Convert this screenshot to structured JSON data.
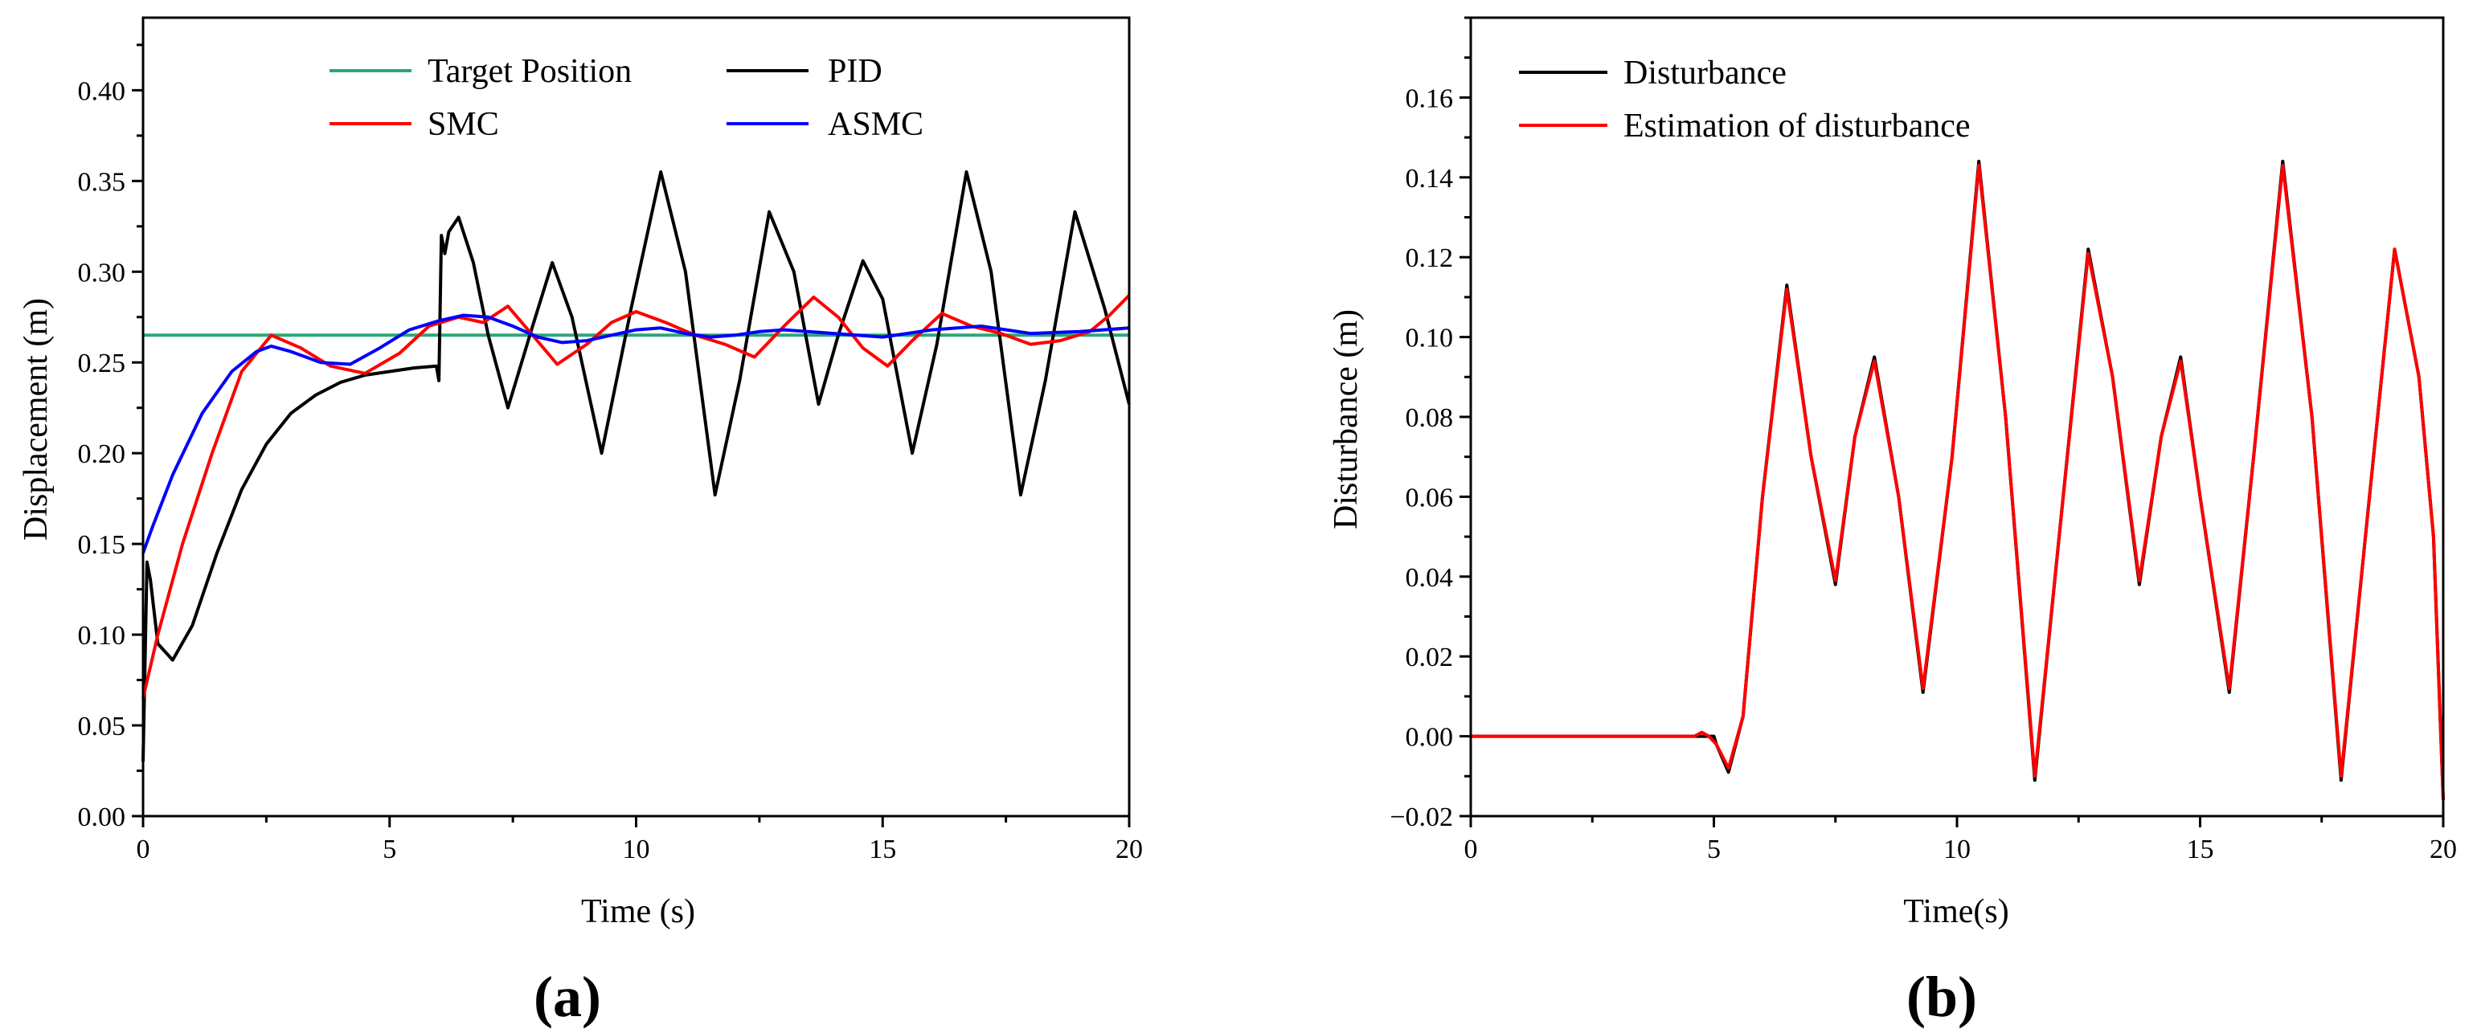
{
  "chart_data": [
    {
      "type": "line",
      "panel_label": "(a)",
      "xlabel": "Time (s)",
      "ylabel": "Displacement (m)",
      "xlim": [
        0,
        20
      ],
      "ylim": [
        0,
        0.44
      ],
      "xticks": [
        0,
        5,
        10,
        15,
        20
      ],
      "xtick_labels": [
        "0",
        "5",
        "10",
        "15",
        "20"
      ],
      "yticks": [
        0,
        0.05,
        0.1,
        0.15,
        0.2,
        0.25,
        0.3,
        0.35,
        0.4
      ],
      "ytick_labels": [
        "0.00",
        "0.05",
        "0.10",
        "0.15",
        "0.20",
        "0.25",
        "0.30",
        "0.35",
        "0.40"
      ],
      "legend_position": "top",
      "series": [
        {
          "name": "Target Position",
          "color": "#2aa876",
          "x": [
            0,
            20
          ],
          "y": [
            0.265,
            0.265
          ]
        },
        {
          "name": "PID",
          "color": "#000000",
          "x": [
            0,
            0.08,
            0.15,
            0.3,
            0.6,
            1.0,
            1.5,
            2.0,
            2.5,
            3.0,
            3.5,
            4.0,
            4.5,
            5.0,
            5.5,
            5.95,
            6.0,
            6.05,
            6.12,
            6.2,
            6.4,
            6.7,
            7.0,
            7.4,
            7.9,
            8.3,
            8.7,
            9.3,
            9.9,
            10.5,
            11.0,
            11.6,
            12.1,
            12.7,
            13.2,
            13.7,
            14.1,
            14.6,
            15.0,
            15.6,
            16.1,
            16.7,
            17.2,
            17.8,
            18.3,
            18.9,
            19.5,
            20.0
          ],
          "y": [
            0.03,
            0.14,
            0.13,
            0.095,
            0.086,
            0.105,
            0.145,
            0.18,
            0.205,
            0.222,
            0.232,
            0.239,
            0.243,
            0.245,
            0.247,
            0.248,
            0.24,
            0.32,
            0.31,
            0.322,
            0.33,
            0.305,
            0.265,
            0.225,
            0.27,
            0.305,
            0.275,
            0.2,
            0.28,
            0.355,
            0.3,
            0.177,
            0.24,
            0.333,
            0.3,
            0.227,
            0.265,
            0.306,
            0.285,
            0.2,
            0.26,
            0.355,
            0.3,
            0.177,
            0.24,
            0.333,
            0.28,
            0.227
          ]
        },
        {
          "name": "SMC",
          "color": "#ff0000",
          "x": [
            0,
            0.3,
            0.8,
            1.4,
            2.0,
            2.6,
            3.2,
            3.8,
            4.5,
            5.2,
            5.8,
            6.4,
            6.9,
            7.4,
            7.9,
            8.4,
            9.0,
            9.5,
            10.0,
            10.6,
            11.2,
            11.8,
            12.4,
            13.0,
            13.6,
            14.1,
            14.6,
            15.1,
            15.6,
            16.2,
            16.8,
            17.4,
            18.0,
            18.6,
            19.2,
            19.6,
            20.0
          ],
          "y": [
            0.065,
            0.1,
            0.15,
            0.2,
            0.245,
            0.265,
            0.258,
            0.248,
            0.244,
            0.255,
            0.27,
            0.275,
            0.272,
            0.281,
            0.265,
            0.249,
            0.26,
            0.272,
            0.278,
            0.272,
            0.265,
            0.26,
            0.253,
            0.27,
            0.286,
            0.275,
            0.258,
            0.248,
            0.262,
            0.277,
            0.27,
            0.266,
            0.26,
            0.262,
            0.267,
            0.276,
            0.287
          ]
        },
        {
          "name": "ASMC",
          "color": "#0000ff",
          "x": [
            0,
            0.2,
            0.6,
            1.2,
            1.8,
            2.3,
            2.6,
            3.0,
            3.6,
            4.2,
            4.8,
            5.4,
            6.0,
            6.5,
            7.0,
            7.5,
            8.0,
            8.5,
            9.0,
            9.5,
            10.0,
            10.5,
            11.0,
            11.5,
            12.0,
            12.5,
            13.0,
            14.0,
            15.0,
            16.0,
            17.0,
            18.0,
            19.0,
            20.0
          ],
          "y": [
            0.145,
            0.16,
            0.188,
            0.222,
            0.245,
            0.256,
            0.259,
            0.256,
            0.25,
            0.249,
            0.258,
            0.268,
            0.273,
            0.276,
            0.275,
            0.27,
            0.264,
            0.261,
            0.262,
            0.265,
            0.268,
            0.269,
            0.266,
            0.264,
            0.265,
            0.267,
            0.268,
            0.266,
            0.264,
            0.268,
            0.27,
            0.266,
            0.267,
            0.269
          ]
        }
      ]
    },
    {
      "type": "line",
      "panel_label": "(b)",
      "xlabel": "Time(s)",
      "ylabel": "Disturbance (m)",
      "xlim": [
        0,
        20
      ],
      "ylim": [
        -0.02,
        0.18
      ],
      "xticks": [
        0,
        5,
        10,
        15,
        20
      ],
      "xtick_labels": [
        "0",
        "5",
        "10",
        "15",
        "20"
      ],
      "yticks": [
        -0.02,
        0,
        0.02,
        0.04,
        0.06,
        0.08,
        0.1,
        0.12,
        0.14,
        0.16
      ],
      "ytick_labels": [
        "−0.02",
        "0.00",
        "0.02",
        "0.04",
        "0.06",
        "0.08",
        "0.10",
        "0.12",
        "0.14",
        "0.16"
      ],
      "legend_position": "top-left",
      "series": [
        {
          "name": "Disturbance",
          "color": "#000000",
          "x": [
            0,
            4.9,
            5.0,
            5.05,
            5.3,
            5.6,
            6.0,
            6.5,
            7.0,
            7.5,
            7.9,
            8.3,
            8.8,
            9.3,
            9.9,
            10.45,
            11.0,
            11.6,
            12.1,
            12.7,
            13.2,
            13.75,
            14.2,
            14.6,
            15.0,
            15.6,
            16.1,
            16.7,
            17.3,
            17.9,
            18.4,
            19.0,
            19.5,
            19.8,
            20.0
          ],
          "y": [
            0,
            0,
            0,
            -0.002,
            -0.009,
            0.005,
            0.06,
            0.113,
            0.07,
            0.038,
            0.075,
            0.095,
            0.06,
            0.011,
            0.07,
            0.144,
            0.08,
            -0.011,
            0.05,
            0.122,
            0.09,
            0.038,
            0.075,
            0.095,
            0.06,
            0.011,
            0.07,
            0.144,
            0.08,
            -0.011,
            0.05,
            0.122,
            0.09,
            0.05,
            -0.016
          ]
        },
        {
          "name": "Estimation of disturbance",
          "color": "#ff0000",
          "x": [
            0,
            4.6,
            4.75,
            4.9,
            5.05,
            5.3,
            5.6,
            6.0,
            6.5,
            7.0,
            7.5,
            7.9,
            8.3,
            8.8,
            9.3,
            9.9,
            10.45,
            11.0,
            11.6,
            12.1,
            12.7,
            13.2,
            13.75,
            14.2,
            14.6,
            15.0,
            15.6,
            16.1,
            16.7,
            17.3,
            17.9,
            18.4,
            19.0,
            19.5,
            19.8,
            20.0
          ],
          "y": [
            0,
            0,
            0.001,
            0,
            -0.002,
            -0.008,
            0.005,
            0.06,
            0.112,
            0.07,
            0.039,
            0.075,
            0.094,
            0.06,
            0.012,
            0.07,
            0.143,
            0.08,
            -0.01,
            0.05,
            0.121,
            0.09,
            0.039,
            0.075,
            0.094,
            0.06,
            0.012,
            0.07,
            0.143,
            0.08,
            -0.01,
            0.05,
            0.122,
            0.09,
            0.05,
            -0.016
          ]
        }
      ]
    }
  ]
}
